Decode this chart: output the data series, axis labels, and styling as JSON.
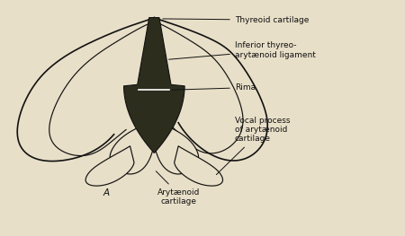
{
  "background_color": "#e8dfc8",
  "fig_width": 4.5,
  "fig_height": 2.63,
  "dpi": 100,
  "labels": {
    "thyreoid": "Thyreoid cartilage",
    "inferior": "Inferior thyreo-\narytænoid ligament",
    "rima": "Rima",
    "vocal": "Vocal process\nof arytænoid\ncartilage",
    "aryt": "Arytænoid\ncartilage",
    "A": "A"
  },
  "label_fontsize": 6.5,
  "line_color": "#111111",
  "fill_dark": "#2d2d1e",
  "watermark_color": "#cccccc"
}
